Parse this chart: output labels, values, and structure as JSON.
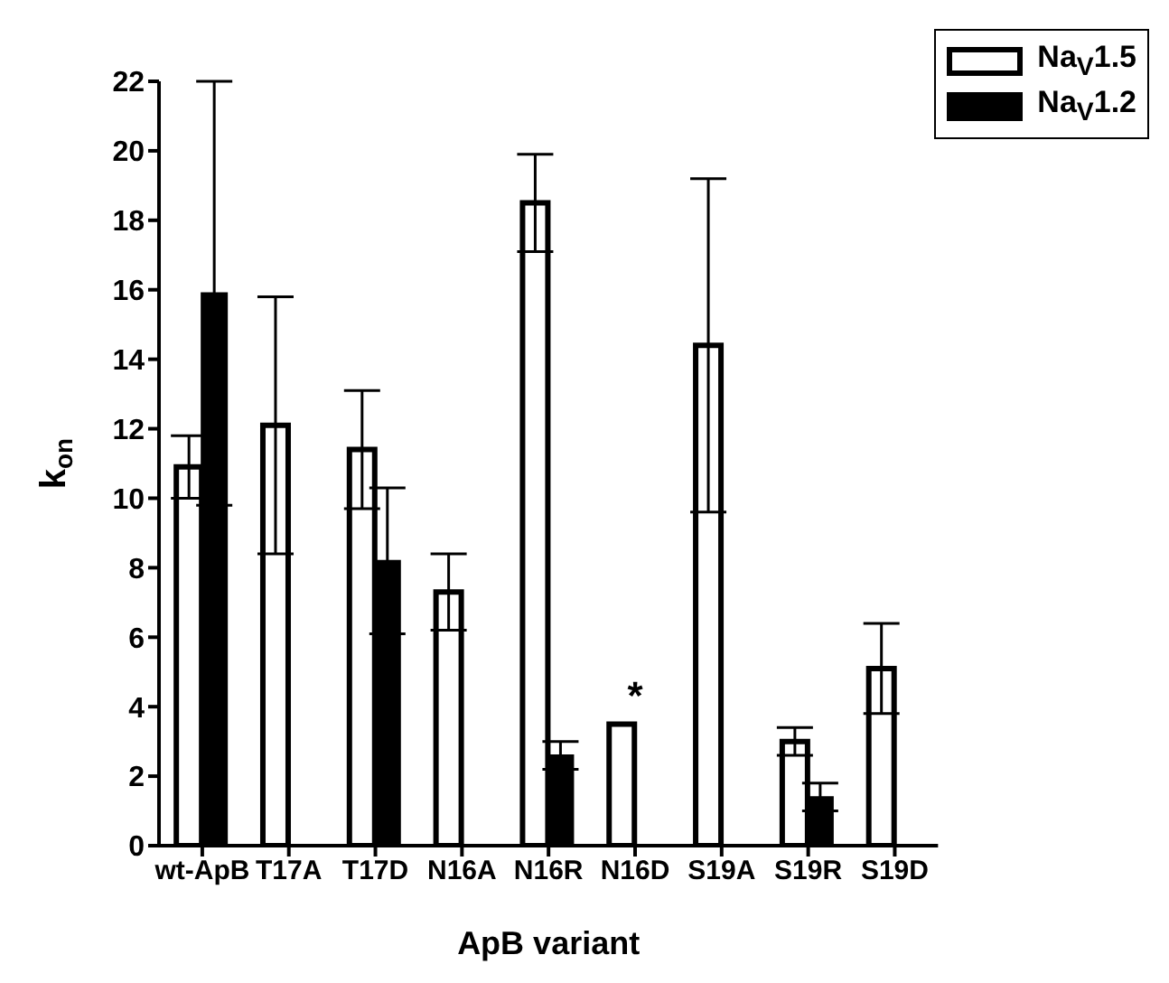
{
  "chart_data": {
    "type": "bar",
    "xlabel": "ApB variant",
    "ylabel": "k$_{on}$",
    "categories": [
      "wt-ApB",
      "T17A",
      "T17D",
      "N16A",
      "N16R",
      "N16D",
      "S19A",
      "S19R",
      "S19D"
    ],
    "series": [
      {
        "name": "Na$_{V}$1.5",
        "color": "#ffffff",
        "values": [
          10.9,
          12.1,
          11.4,
          7.3,
          18.5,
          3.5,
          14.4,
          3.0,
          5.1
        ],
        "errors": [
          [
            10.0,
            11.8
          ],
          [
            8.4,
            15.8
          ],
          [
            9.7,
            13.1
          ],
          [
            6.2,
            8.4
          ],
          [
            17.1,
            19.9
          ],
          null,
          [
            9.6,
            19.2
          ],
          [
            2.6,
            3.4
          ],
          [
            3.8,
            6.4
          ]
        ]
      },
      {
        "name": "Na$_{V}$1.2",
        "color": "#000000",
        "values": [
          15.9,
          null,
          8.2,
          null,
          2.6,
          null,
          null,
          1.4,
          null
        ],
        "errors": [
          6.1,
          null,
          2.1,
          null,
          0.4,
          null,
          null,
          0.4,
          null
        ]
      }
    ],
    "ylim": [
      0,
      22
    ],
    "yticks": [
      0,
      2,
      4,
      6,
      8,
      10,
      12,
      14,
      16,
      18,
      20,
      22
    ],
    "annotations": [
      {
        "text": "*",
        "x": "N16D",
        "y": 3.5
      }
    ],
    "grid": false,
    "legend": "top right"
  }
}
